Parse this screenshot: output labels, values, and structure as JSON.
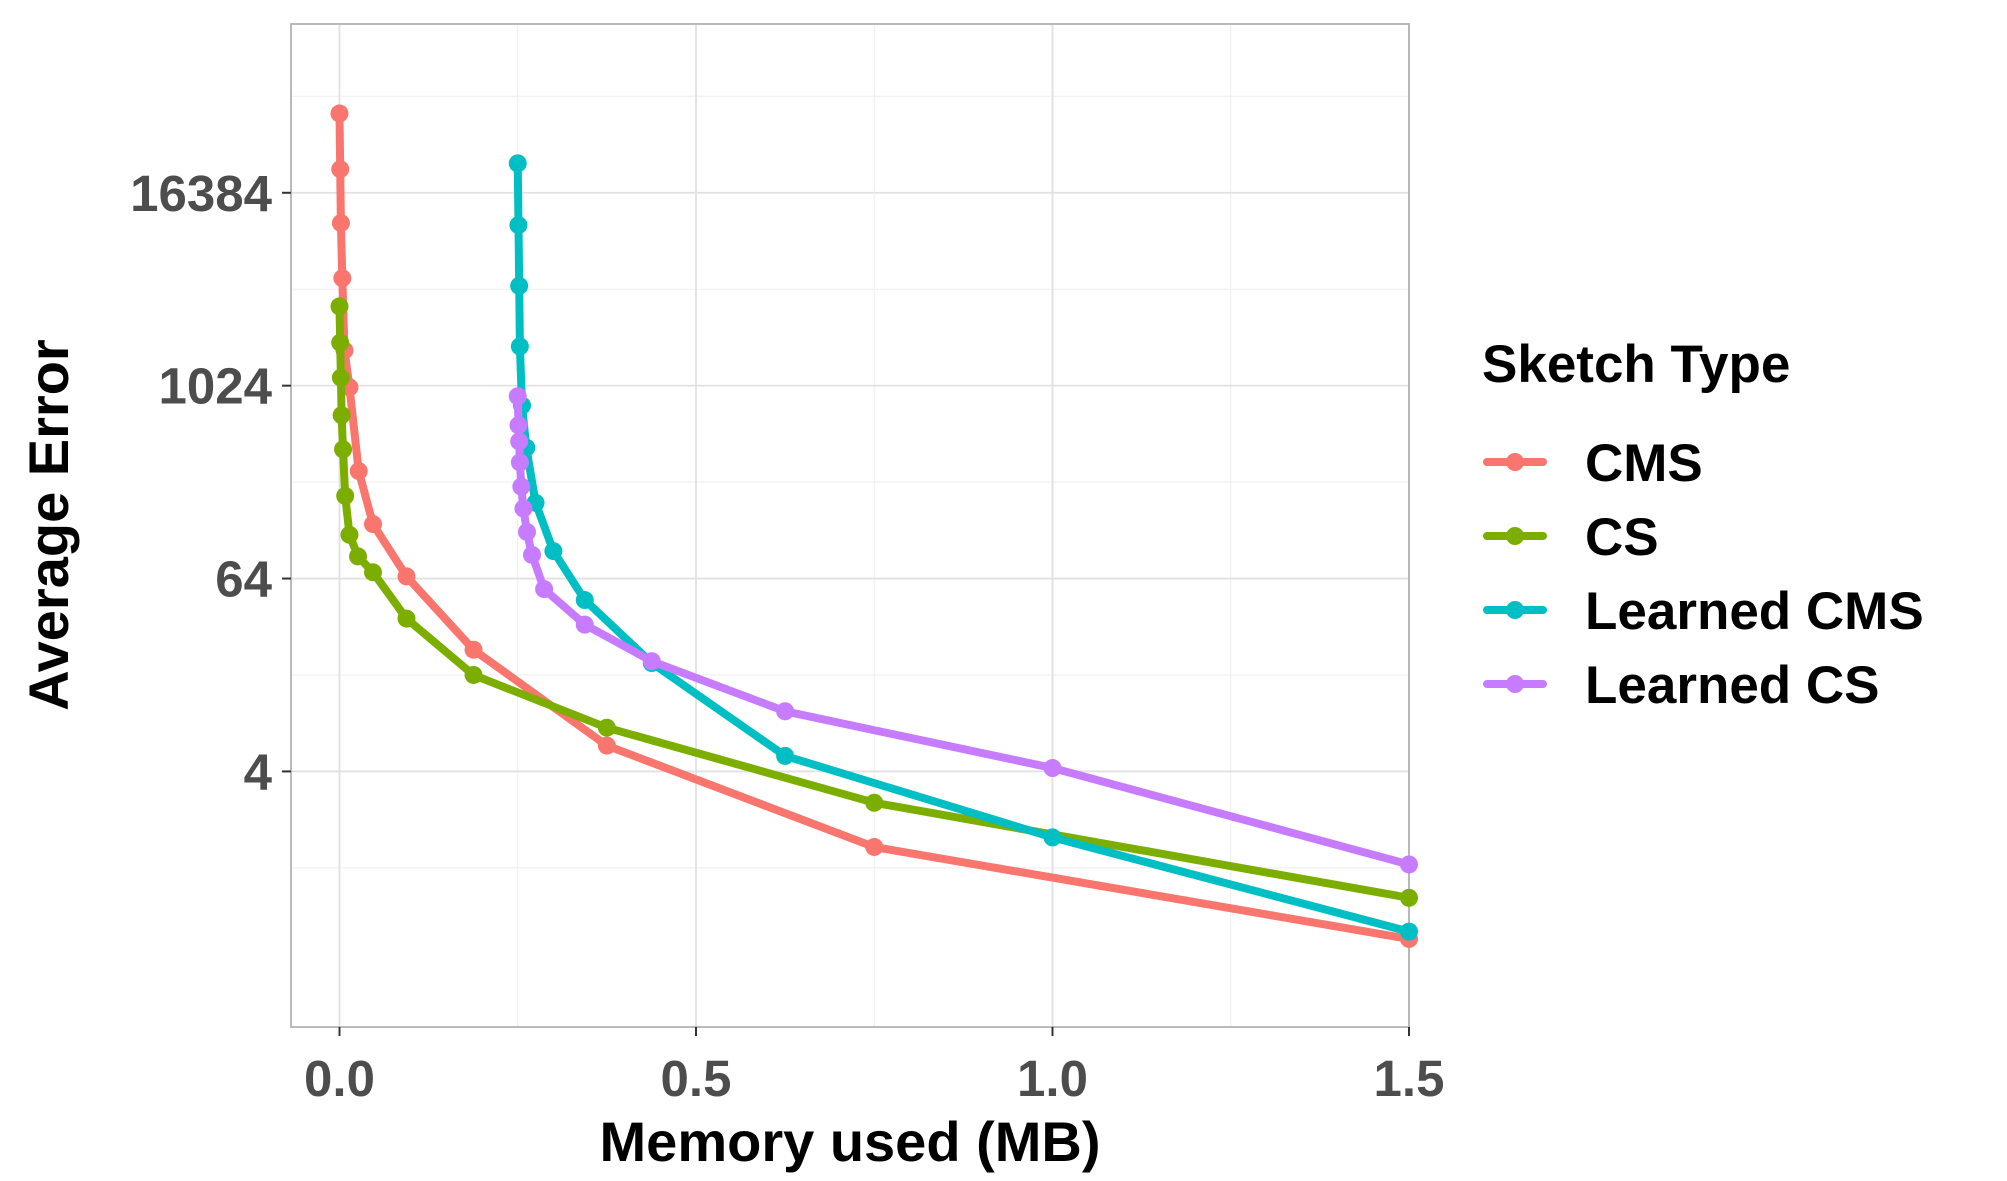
{
  "chart_data": {
    "type": "line",
    "xlabel": "Memory used (MB)",
    "ylabel": "Average Error",
    "xlim": [
      -0.068,
      1.5
    ],
    "ylim_log2": [
      -3.3,
      17.5
    ],
    "y_scale": "log2",
    "x_ticks": [
      {
        "value": 0.0,
        "label": "0.0"
      },
      {
        "value": 0.5,
        "label": "0.5"
      },
      {
        "value": 1.0,
        "label": "1.0"
      },
      {
        "value": 1.5,
        "label": "1.5"
      }
    ],
    "y_ticks": [
      {
        "value": 4,
        "label": "4"
      },
      {
        "value": 64,
        "label": "64"
      },
      {
        "value": 1024,
        "label": "1024"
      },
      {
        "value": 16384,
        "label": "16384"
      }
    ],
    "grid": true,
    "legend": {
      "title": "Sketch Type",
      "position": "right"
    },
    "series": [
      {
        "name": "CMS",
        "color": "#F8766D",
        "x": [
          0.0,
          0.001,
          0.002,
          0.004,
          0.007,
          0.014,
          0.027,
          0.047,
          0.094,
          0.188,
          0.375,
          0.75,
          1.5
        ],
        "y": [
          51200,
          23000,
          10600,
          4800,
          1700,
          1000,
          300,
          140,
          66,
          23,
          5.8,
          1.35,
          0.36
        ]
      },
      {
        "name": "CS",
        "color": "#7CAE00",
        "x": [
          0.0,
          0.001,
          0.002,
          0.003,
          0.005,
          0.008,
          0.014,
          0.026,
          0.047,
          0.094,
          0.188,
          0.375,
          0.75,
          1.5
        ],
        "y": [
          3200,
          1900,
          1150,
          670,
          410,
          210,
          120,
          88,
          70,
          36,
          16,
          7.5,
          2.55,
          0.65
        ]
      },
      {
        "name": "Learned CMS",
        "color": "#00BFC4",
        "x": [
          0.25,
          0.251,
          0.252,
          0.253,
          0.256,
          0.262,
          0.275,
          0.3,
          0.344,
          0.438,
          0.625,
          1.0,
          1.5
        ],
        "y": [
          25000,
          10300,
          4300,
          1800,
          770,
          420,
          190,
          95,
          47,
          19,
          5.0,
          1.55,
          0.4
        ]
      },
      {
        "name": "Learned CS",
        "color": "#C77CFF",
        "x": [
          0.25,
          0.251,
          0.252,
          0.253,
          0.255,
          0.258,
          0.263,
          0.27,
          0.287,
          0.344,
          0.438,
          0.625,
          1.0,
          1.5
        ],
        "y": [
          880,
          580,
          460,
          340,
          240,
          175,
          125,
          90,
          55,
          33,
          19.5,
          9.5,
          4.2,
          1.05
        ]
      }
    ]
  }
}
